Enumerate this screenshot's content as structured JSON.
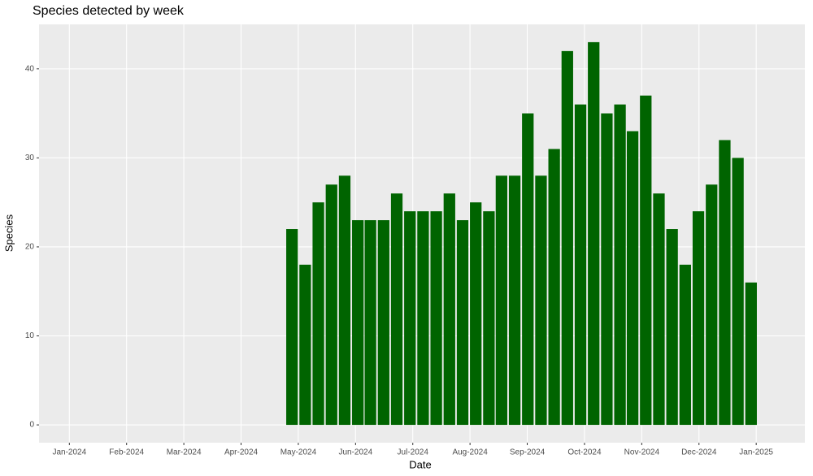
{
  "chart_data": {
    "type": "bar",
    "title": "Species detected by week",
    "x_label": "Date",
    "y_label": "Species",
    "color": "#006400",
    "grid": true,
    "x": [
      3.89,
      4.12,
      4.35,
      4.58,
      4.81,
      5.04,
      5.26,
      5.49,
      5.72,
      5.95,
      6.18,
      6.41,
      6.64,
      6.87,
      7.1,
      7.33,
      7.55,
      7.78,
      8.01,
      8.24,
      8.47,
      8.7,
      8.93,
      9.16,
      9.39,
      9.62,
      9.84,
      10.07,
      10.3,
      10.53,
      10.76,
      10.99,
      11.22,
      11.45,
      11.68,
      11.91
    ],
    "values": [
      22,
      18,
      25,
      27,
      28,
      23,
      23,
      23,
      26,
      24,
      24,
      24,
      26,
      23,
      25,
      24,
      28,
      28,
      35,
      28,
      31,
      42,
      36,
      43,
      35,
      36,
      33,
      37,
      26,
      22,
      18,
      24,
      27,
      32,
      30,
      16
    ],
    "xlim": [
      -0.53,
      12.85
    ],
    "xticks": [
      {
        "value": 0,
        "label": "Jan-2024"
      },
      {
        "value": 1,
        "label": "Feb-2024"
      },
      {
        "value": 2,
        "label": "Mar-2024"
      },
      {
        "value": 3,
        "label": "Apr-2024"
      },
      {
        "value": 4,
        "label": "May-2024"
      },
      {
        "value": 5,
        "label": "Jun-2024"
      },
      {
        "value": 6,
        "label": "Jul-2024"
      },
      {
        "value": 7,
        "label": "Aug-2024"
      },
      {
        "value": 8,
        "label": "Sep-2024"
      },
      {
        "value": 9,
        "label": "Oct-2024"
      },
      {
        "value": 10,
        "label": "Nov-2024"
      },
      {
        "value": 11,
        "label": "Dec-2024"
      },
      {
        "value": 12,
        "label": "Jan-2025"
      }
    ],
    "ylim": [
      -2,
      45
    ],
    "yticks": [
      0,
      10,
      20,
      30,
      40
    ]
  }
}
